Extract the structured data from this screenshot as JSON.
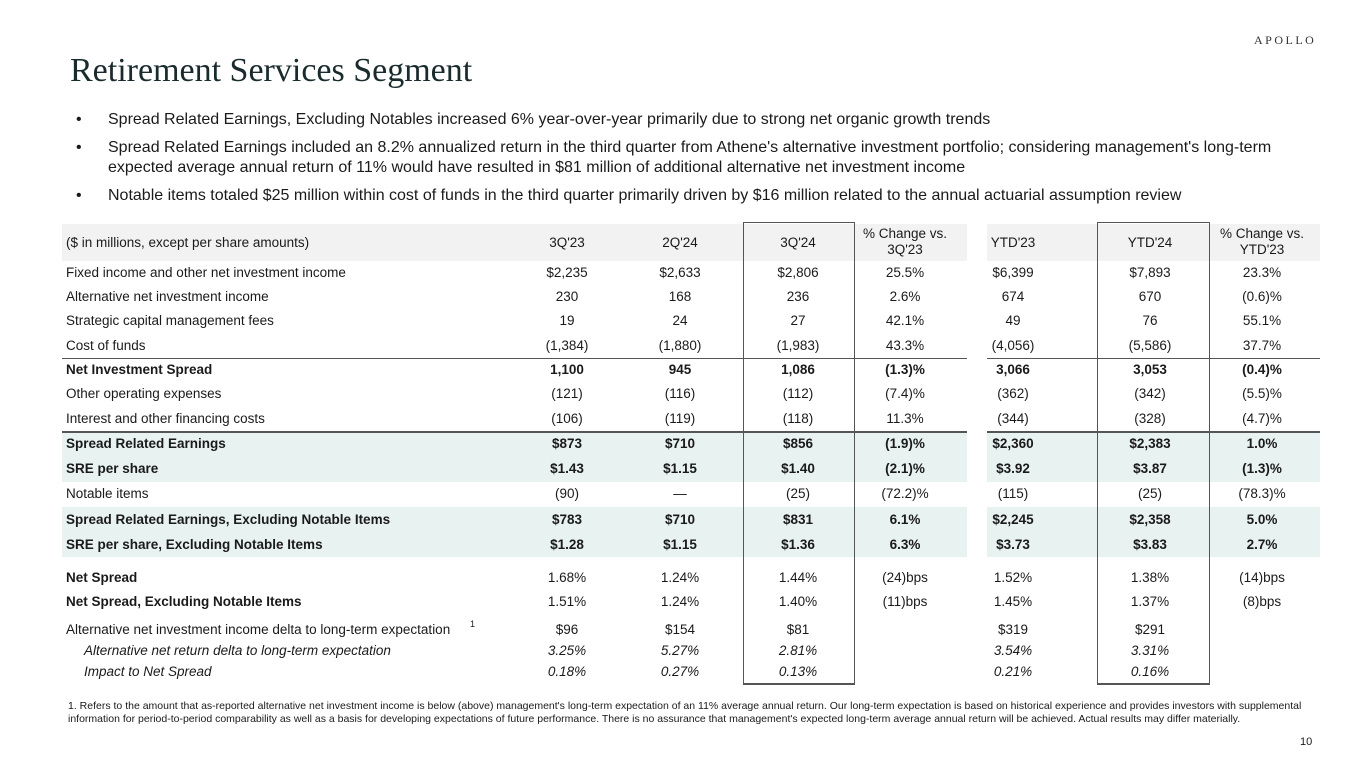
{
  "logo": "APOLLO",
  "title": "Retirement Services Segment",
  "bullets": [
    "Spread Related Earnings, Excluding Notables increased 6% year-over-year primarily due to strong net organic growth trends",
    "Spread Related Earnings included an 8.2% annualized return in the third quarter from Athene's alternative investment portfolio; considering management's long-term expected average annual return of 11% would have resulted in $81 million of additional alternative net investment income",
    "Notable items totaled $25 million within cost of funds in the third quarter primarily driven by $16 million related to the annual actuarial assumption review"
  ],
  "bullet_glyph": "•",
  "table": {
    "header": [
      "($ in millions, except per share amounts)",
      "3Q'23",
      "2Q'24",
      "3Q'24",
      "% Change vs. 3Q'23",
      "YTD'23",
      "YTD'24",
      "% Change vs. YTD'23"
    ],
    "rows": [
      {
        "label": "Fixed income and other net investment income",
        "v": [
          "$2,235",
          "$2,633",
          "$2,806",
          "25.5%",
          "$6,399",
          "$7,893",
          "23.3%"
        ]
      },
      {
        "label": "Alternative net investment income",
        "v": [
          "230",
          "168",
          "236",
          "2.6%",
          "674",
          "670",
          "(0.6)%"
        ]
      },
      {
        "label": "Strategic capital management fees",
        "v": [
          "19",
          "24",
          "27",
          "42.1%",
          "49",
          "76",
          "55.1%"
        ]
      },
      {
        "label": "Cost of funds",
        "v": [
          "(1,384)",
          "(1,880)",
          "(1,983)",
          "43.3%",
          "(4,056)",
          "(5,586)",
          "37.7%"
        ]
      },
      {
        "label": "Net Investment Spread",
        "v": [
          "1,100",
          "945",
          "1,086",
          "(1.3)%",
          "3,066",
          "3,053",
          "(0.4)%"
        ]
      },
      {
        "label": "Other operating expenses",
        "v": [
          "(121)",
          "(116)",
          "(112)",
          "(7.4)%",
          "(362)",
          "(342)",
          "(5.5)%"
        ]
      },
      {
        "label": "Interest and other financing costs",
        "v": [
          "(106)",
          "(119)",
          "(118)",
          "11.3%",
          "(344)",
          "(328)",
          "(4.7)%"
        ]
      },
      {
        "label": "Spread Related Earnings",
        "v": [
          "$873",
          "$710",
          "$856",
          "(1.9)%",
          "$2,360",
          "$2,383",
          "1.0%"
        ]
      },
      {
        "label": "SRE per share",
        "v": [
          "$1.43",
          "$1.15",
          "$1.40",
          "(2.1)%",
          "$3.92",
          "$3.87",
          "(1.3)%"
        ]
      },
      {
        "label": "Notable items",
        "v": [
          "(90)",
          "—",
          "(25)",
          "(72.2)%",
          "(115)",
          "(25)",
          "(78.3)%"
        ]
      },
      {
        "label": "Spread Related Earnings, Excluding Notable Items",
        "v": [
          "$783",
          "$710",
          "$831",
          "6.1%",
          "$2,245",
          "$2,358",
          "5.0%"
        ]
      },
      {
        "label": "SRE per share, Excluding Notable Items",
        "v": [
          "$1.28",
          "$1.15",
          "$1.36",
          "6.3%",
          "$3.73",
          "$3.83",
          "2.7%"
        ]
      },
      {
        "label": "Net Spread",
        "v": [
          "1.68%",
          "1.24%",
          "1.44%",
          "(24)bps",
          "1.52%",
          "1.38%",
          "(14)bps"
        ]
      },
      {
        "label": "Net Spread, Excluding Notable Items",
        "v": [
          "1.51%",
          "1.24%",
          "1.40%",
          "(11)bps",
          "1.45%",
          "1.37%",
          "(8)bps"
        ]
      },
      {
        "label": "Alternative net investment income delta to long-term expectation",
        "sup": "1",
        "v": [
          "$96",
          "$154",
          "$81",
          "",
          "$319",
          "$291",
          ""
        ]
      },
      {
        "label": "Alternative net return delta to long-term expectation",
        "v": [
          "3.25%",
          "5.27%",
          "2.81%",
          "",
          "3.54%",
          "3.31%",
          ""
        ]
      },
      {
        "label": "Impact to Net Spread",
        "v": [
          "0.18%",
          "0.27%",
          "0.13%",
          "",
          "0.21%",
          "0.16%",
          ""
        ]
      }
    ]
  },
  "footnote": "1. Refers to the amount that as-reported alternative net investment income is below (above) management's long-term expectation of an 11% average annual return. Our long-term expectation is based on historical experience and provides investors with supplemental information for period-to-period comparability as well as a basis for developing expectations of future performance. There is no assurance that management's expected long-term average annual return will be achieved. Actual results may differ materially.",
  "page_number": "10",
  "colors": {
    "header_bg": "#f2f2f2",
    "highlight_bg": "#e8f2f0",
    "title": "#1a2b2e"
  }
}
